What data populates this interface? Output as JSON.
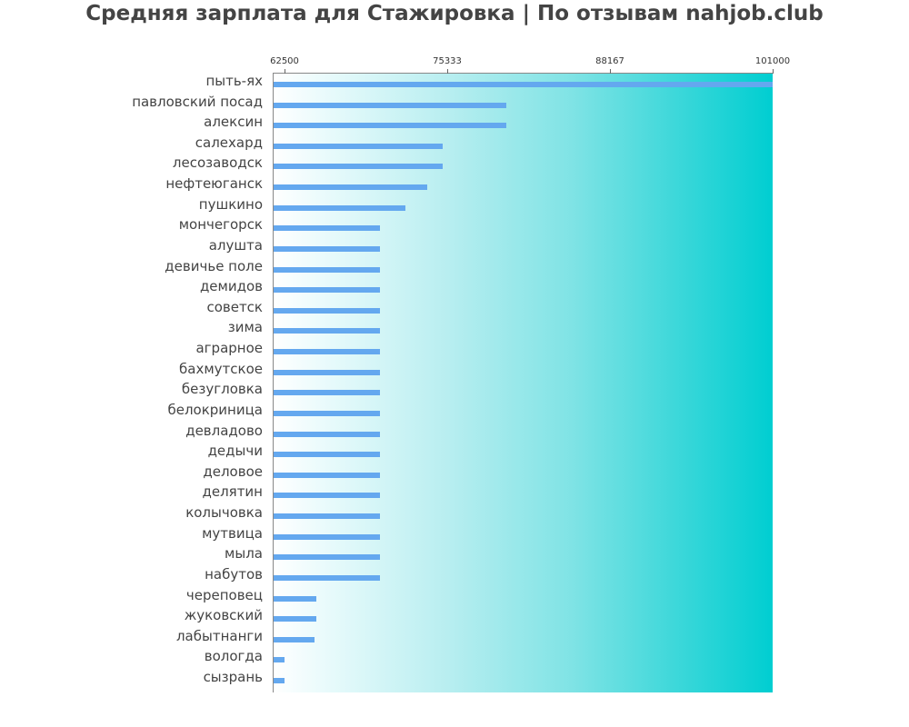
{
  "title": "Средняя зарплата для Стажировка | По отзывам nahjob.club",
  "axis": {
    "ticks": [
      {
        "label": "62500",
        "value": 62500
      },
      {
        "label": "75333",
        "value": 75333
      },
      {
        "label": "88167",
        "value": 88167
      },
      {
        "label": "101000",
        "value": 101000
      }
    ]
  },
  "colors": {
    "bar": "#64a8ef",
    "gradient_start": "#ffffff",
    "gradient_end": "#00ced1",
    "title": "#444444"
  },
  "chart_data": {
    "type": "bar",
    "orientation": "horizontal",
    "title": "Средняя зарплата для Стажировка | По отзывам nahjob.club",
    "xlabel": "",
    "ylabel": "",
    "xlim": [
      61500,
      101000
    ],
    "x_ticks": [
      62500,
      75333,
      88167,
      101000
    ],
    "grid": false,
    "legend": null,
    "categories": [
      "пыть-ях",
      "павловский посад",
      "алексин",
      "салехард",
      "лесозаводск",
      "нефтеюганск",
      "пушкино",
      "мончегорск",
      "алушта",
      "девичье поле",
      "демидов",
      "советск",
      "зима",
      "аграрное",
      "бахмутское",
      "безугловка",
      "белокриница",
      "девладово",
      "дедычи",
      "деловое",
      "делятин",
      "колычовка",
      "мутвица",
      "мыла",
      "набутов",
      "череповец",
      "жуковский",
      "лабытнанги",
      "вологда",
      "сызрань"
    ],
    "values": [
      101000,
      80000,
      80000,
      75000,
      75000,
      73750,
      72000,
      70000,
      70000,
      70000,
      70000,
      70000,
      70000,
      70000,
      70000,
      70000,
      70000,
      70000,
      70000,
      70000,
      70000,
      70000,
      70000,
      70000,
      70000,
      65000,
      65000,
      64900,
      62500,
      62500
    ]
  }
}
